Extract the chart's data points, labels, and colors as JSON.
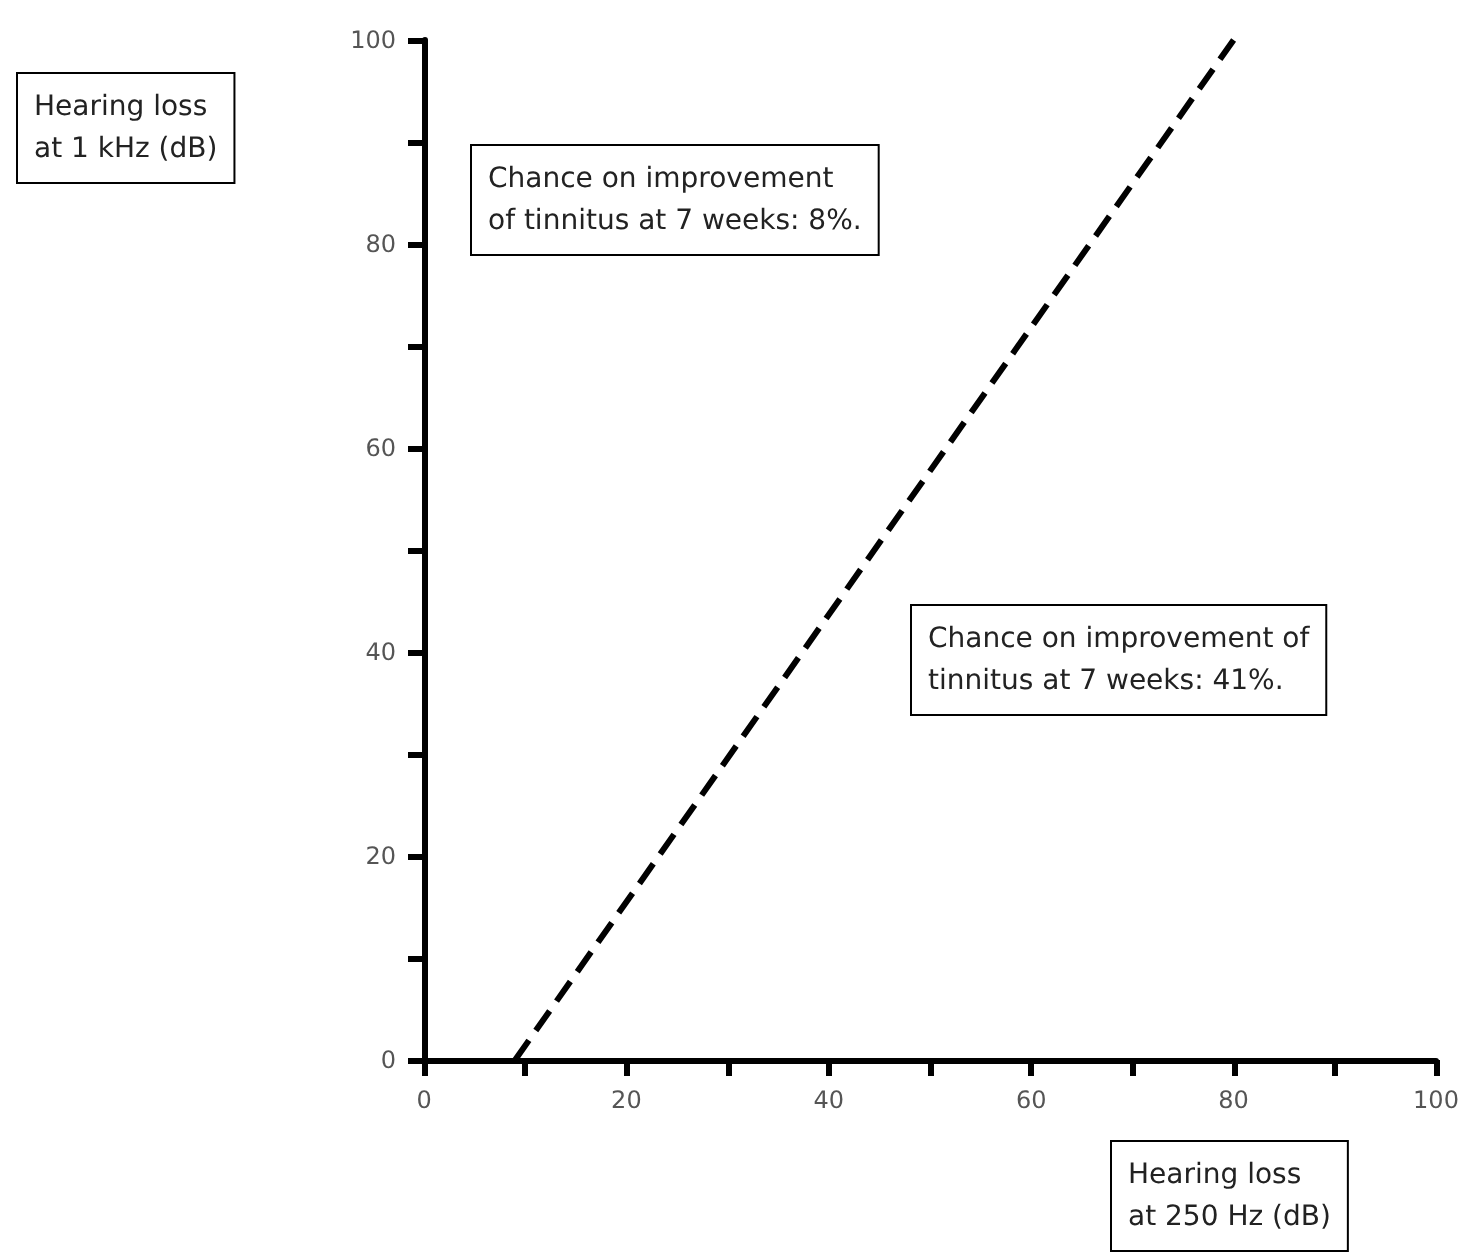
{
  "chart_data": {
    "type": "line",
    "xlabel": "Hearing loss\nat 250 Hz (dB)",
    "ylabel": "Hearing loss\nat 1 kHz (dB)",
    "annotations": [
      "Chance on improvement\nof tinnitus at 7 weeks: 8%.",
      "Chance on improvement of\ntinnitus at 7 weeks: 41%."
    ],
    "x": [
      9,
      80
    ],
    "series": [
      {
        "color": "#000000",
        "values": [
          0,
          100
        ]
      }
    ],
    "xlim": [
      0,
      100
    ],
    "ylim": [
      0,
      100
    ],
    "xticks": [
      0,
      {
        "value": 10,
        "label": null
      },
      20,
      {
        "value": 30,
        "label": null
      },
      40,
      {
        "value": 50,
        "label": null
      },
      60,
      {
        "value": 70,
        "label": null
      },
      80,
      {
        "value": 90,
        "label": null
      },
      100
    ],
    "yticks": [
      0,
      {
        "value": 10,
        "label": null
      },
      20,
      {
        "value": 30,
        "label": null
      },
      40,
      {
        "value": 50,
        "label": null
      },
      60,
      {
        "value": 70,
        "label": null
      },
      80,
      {
        "value": 90,
        "label": null
      },
      100
    ],
    "grid": false,
    "marker": "none",
    "line_style": "dashed"
  }
}
